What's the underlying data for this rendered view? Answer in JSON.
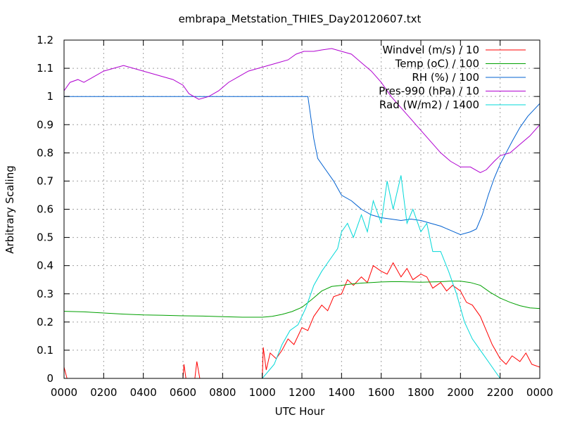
{
  "chart_data": {
    "type": "line",
    "title": "embrapa_Metstation_THIES_Day20120607.txt",
    "xlabel": "UTC Hour",
    "ylabel": "Arbitrary Scaling",
    "xlim": [
      0,
      24
    ],
    "ylim": [
      0,
      1.2
    ],
    "x_ticks": [
      "0000",
      "0200",
      "0400",
      "0600",
      "0800",
      "1000",
      "1200",
      "1400",
      "1600",
      "1800",
      "2000",
      "2200",
      "0000"
    ],
    "y_ticks": [
      "0",
      "0.1",
      "0.2",
      "0.3",
      "0.4",
      "0.5",
      "0.6",
      "0.7",
      "0.8",
      "0.9",
      "1",
      "1.1",
      "1.2"
    ],
    "grid": true,
    "legend_position": "top-right",
    "series": [
      {
        "name": "Windvel (m/s) / 10",
        "color": "#ff0000",
        "points": [
          [
            0,
            0.04
          ],
          [
            0.15,
            0
          ],
          [
            6,
            0
          ],
          [
            6.05,
            0.05
          ],
          [
            6.15,
            0
          ],
          [
            6.6,
            0
          ],
          [
            6.7,
            0.06
          ],
          [
            6.85,
            0
          ],
          [
            10,
            0
          ],
          [
            10.05,
            0.11
          ],
          [
            10.2,
            0.03
          ],
          [
            10.4,
            0.09
          ],
          [
            10.7,
            0.07
          ],
          [
            11,
            0.1
          ],
          [
            11.3,
            0.14
          ],
          [
            11.6,
            0.12
          ],
          [
            12,
            0.18
          ],
          [
            12.3,
            0.17
          ],
          [
            12.6,
            0.22
          ],
          [
            13,
            0.26
          ],
          [
            13.3,
            0.24
          ],
          [
            13.6,
            0.29
          ],
          [
            14,
            0.3
          ],
          [
            14.3,
            0.35
          ],
          [
            14.6,
            0.33
          ],
          [
            15,
            0.36
          ],
          [
            15.3,
            0.34
          ],
          [
            15.6,
            0.4
          ],
          [
            16,
            0.38
          ],
          [
            16.3,
            0.37
          ],
          [
            16.6,
            0.41
          ],
          [
            17,
            0.36
          ],
          [
            17.3,
            0.39
          ],
          [
            17.6,
            0.35
          ],
          [
            18,
            0.37
          ],
          [
            18.3,
            0.36
          ],
          [
            18.6,
            0.32
          ],
          [
            19,
            0.34
          ],
          [
            19.3,
            0.31
          ],
          [
            19.6,
            0.33
          ],
          [
            20,
            0.31
          ],
          [
            20.3,
            0.27
          ],
          [
            20.6,
            0.26
          ],
          [
            21,
            0.22
          ],
          [
            21.3,
            0.17
          ],
          [
            21.6,
            0.12
          ],
          [
            22,
            0.07
          ],
          [
            22.3,
            0.05
          ],
          [
            22.6,
            0.08
          ],
          [
            23,
            0.06
          ],
          [
            23.3,
            0.09
          ],
          [
            23.6,
            0.05
          ],
          [
            24,
            0.04
          ]
        ]
      },
      {
        "name": "Temp (oC) / 100",
        "color": "#00a000",
        "points": [
          [
            0,
            0.238
          ],
          [
            1,
            0.236
          ],
          [
            2,
            0.232
          ],
          [
            3,
            0.228
          ],
          [
            4,
            0.225
          ],
          [
            5,
            0.224
          ],
          [
            6,
            0.222
          ],
          [
            7,
            0.221
          ],
          [
            8,
            0.219
          ],
          [
            9,
            0.217
          ],
          [
            10,
            0.217
          ],
          [
            10.5,
            0.22
          ],
          [
            11,
            0.227
          ],
          [
            11.5,
            0.237
          ],
          [
            12,
            0.252
          ],
          [
            12.5,
            0.28
          ],
          [
            13,
            0.31
          ],
          [
            13.5,
            0.326
          ],
          [
            14,
            0.33
          ],
          [
            14.5,
            0.335
          ],
          [
            15,
            0.338
          ],
          [
            15.5,
            0.34
          ],
          [
            16,
            0.342
          ],
          [
            16.5,
            0.343
          ],
          [
            17,
            0.343
          ],
          [
            17.5,
            0.342
          ],
          [
            18,
            0.341
          ],
          [
            18.5,
            0.342
          ],
          [
            19,
            0.343
          ],
          [
            19.5,
            0.345
          ],
          [
            20,
            0.345
          ],
          [
            20.5,
            0.34
          ],
          [
            21,
            0.33
          ],
          [
            21.5,
            0.305
          ],
          [
            22,
            0.285
          ],
          [
            22.5,
            0.27
          ],
          [
            23,
            0.258
          ],
          [
            23.5,
            0.25
          ],
          [
            24,
            0.248
          ]
        ]
      },
      {
        "name": "RH (%) / 100",
        "color": "#0060d0",
        "points": [
          [
            0,
            1.0
          ],
          [
            12.3,
            1.0
          ],
          [
            12.4,
            0.95
          ],
          [
            12.6,
            0.85
          ],
          [
            12.8,
            0.78
          ],
          [
            13.2,
            0.74
          ],
          [
            13.6,
            0.7
          ],
          [
            14,
            0.65
          ],
          [
            14.5,
            0.63
          ],
          [
            15,
            0.6
          ],
          [
            15.5,
            0.58
          ],
          [
            16,
            0.57
          ],
          [
            16.5,
            0.565
          ],
          [
            17,
            0.56
          ],
          [
            17.5,
            0.565
          ],
          [
            18,
            0.56
          ],
          [
            18.5,
            0.55
          ],
          [
            19,
            0.54
          ],
          [
            19.5,
            0.525
          ],
          [
            20,
            0.51
          ],
          [
            20.5,
            0.52
          ],
          [
            20.8,
            0.53
          ],
          [
            21.1,
            0.58
          ],
          [
            21.4,
            0.65
          ],
          [
            21.7,
            0.71
          ],
          [
            22,
            0.76
          ],
          [
            22.3,
            0.8
          ],
          [
            22.6,
            0.84
          ],
          [
            23,
            0.89
          ],
          [
            23.4,
            0.93
          ],
          [
            23.8,
            0.96
          ],
          [
            24,
            0.975
          ]
        ]
      },
      {
        "name": "Pres-990 (hPa) / 10",
        "color": "#b000d0",
        "points": [
          [
            0,
            1.02
          ],
          [
            0.3,
            1.05
          ],
          [
            0.7,
            1.06
          ],
          [
            1,
            1.05
          ],
          [
            1.5,
            1.07
          ],
          [
            2,
            1.09
          ],
          [
            2.5,
            1.1
          ],
          [
            3,
            1.11
          ],
          [
            3.5,
            1.1
          ],
          [
            4,
            1.09
          ],
          [
            4.5,
            1.08
          ],
          [
            5,
            1.07
          ],
          [
            5.5,
            1.06
          ],
          [
            6,
            1.04
          ],
          [
            6.3,
            1.01
          ],
          [
            6.8,
            0.99
          ],
          [
            7.3,
            1.0
          ],
          [
            7.8,
            1.02
          ],
          [
            8.3,
            1.05
          ],
          [
            8.8,
            1.07
          ],
          [
            9.3,
            1.09
          ],
          [
            9.8,
            1.1
          ],
          [
            10.3,
            1.11
          ],
          [
            10.8,
            1.12
          ],
          [
            11.3,
            1.13
          ],
          [
            11.7,
            1.15
          ],
          [
            12.1,
            1.16
          ],
          [
            12.6,
            1.16
          ],
          [
            13,
            1.165
          ],
          [
            13.5,
            1.17
          ],
          [
            14,
            1.16
          ],
          [
            14.5,
            1.15
          ],
          [
            15,
            1.12
          ],
          [
            15.5,
            1.09
          ],
          [
            16,
            1.05
          ],
          [
            16.5,
            1.0
          ],
          [
            17,
            0.96
          ],
          [
            17.5,
            0.92
          ],
          [
            18,
            0.88
          ],
          [
            18.5,
            0.84
          ],
          [
            19,
            0.8
          ],
          [
            19.5,
            0.77
          ],
          [
            20,
            0.75
          ],
          [
            20.5,
            0.75
          ],
          [
            21,
            0.73
          ],
          [
            21.3,
            0.74
          ],
          [
            21.7,
            0.77
          ],
          [
            22,
            0.79
          ],
          [
            22.5,
            0.8
          ],
          [
            23,
            0.83
          ],
          [
            23.5,
            0.86
          ],
          [
            24,
            0.9
          ]
        ]
      },
      {
        "name": "Rad (W/m2) / 1400",
        "color": "#00d8d8",
        "points": [
          [
            0,
            0
          ],
          [
            10,
            0
          ],
          [
            10.6,
            0.05
          ],
          [
            11,
            0.12
          ],
          [
            11.4,
            0.17
          ],
          [
            11.8,
            0.19
          ],
          [
            12.2,
            0.25
          ],
          [
            12.6,
            0.33
          ],
          [
            13,
            0.38
          ],
          [
            13.4,
            0.42
          ],
          [
            13.8,
            0.46
          ],
          [
            14,
            0.52
          ],
          [
            14.3,
            0.55
          ],
          [
            14.6,
            0.5
          ],
          [
            15,
            0.58
          ],
          [
            15.3,
            0.52
          ],
          [
            15.6,
            0.63
          ],
          [
            16,
            0.55
          ],
          [
            16.3,
            0.7
          ],
          [
            16.6,
            0.6
          ],
          [
            17,
            0.72
          ],
          [
            17.3,
            0.55
          ],
          [
            17.6,
            0.6
          ],
          [
            18,
            0.52
          ],
          [
            18.3,
            0.55
          ],
          [
            18.6,
            0.45
          ],
          [
            19,
            0.45
          ],
          [
            19.4,
            0.38
          ],
          [
            19.8,
            0.3
          ],
          [
            20.2,
            0.2
          ],
          [
            20.6,
            0.14
          ],
          [
            21,
            0.1
          ],
          [
            21.4,
            0.06
          ],
          [
            21.8,
            0.02
          ],
          [
            22,
            0
          ],
          [
            24,
            0
          ]
        ]
      }
    ]
  }
}
